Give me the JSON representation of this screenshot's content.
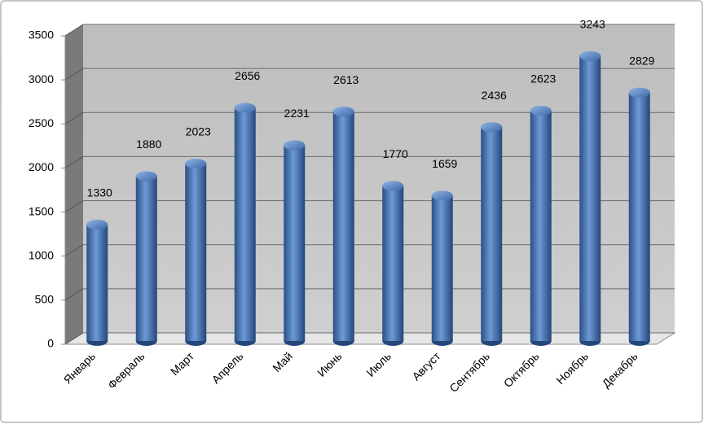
{
  "chart_data": {
    "type": "bar",
    "categories": [
      "Январь",
      "Февраль",
      "Март",
      "Апрель",
      "Май",
      "Июнь",
      "Июль",
      "Август",
      "Сентябрь",
      "Октябрь",
      "Ноябрь",
      "Декабрь"
    ],
    "values": [
      1330,
      1880,
      2023,
      2656,
      2231,
      2613,
      1770,
      1659,
      2436,
      2623,
      3243,
      2829
    ],
    "color": "#4f81bd",
    "ylim": [
      0,
      3500
    ],
    "yticks": [
      0,
      500,
      1000,
      1500,
      2000,
      2500,
      3000,
      3500
    ],
    "grid": true
  }
}
